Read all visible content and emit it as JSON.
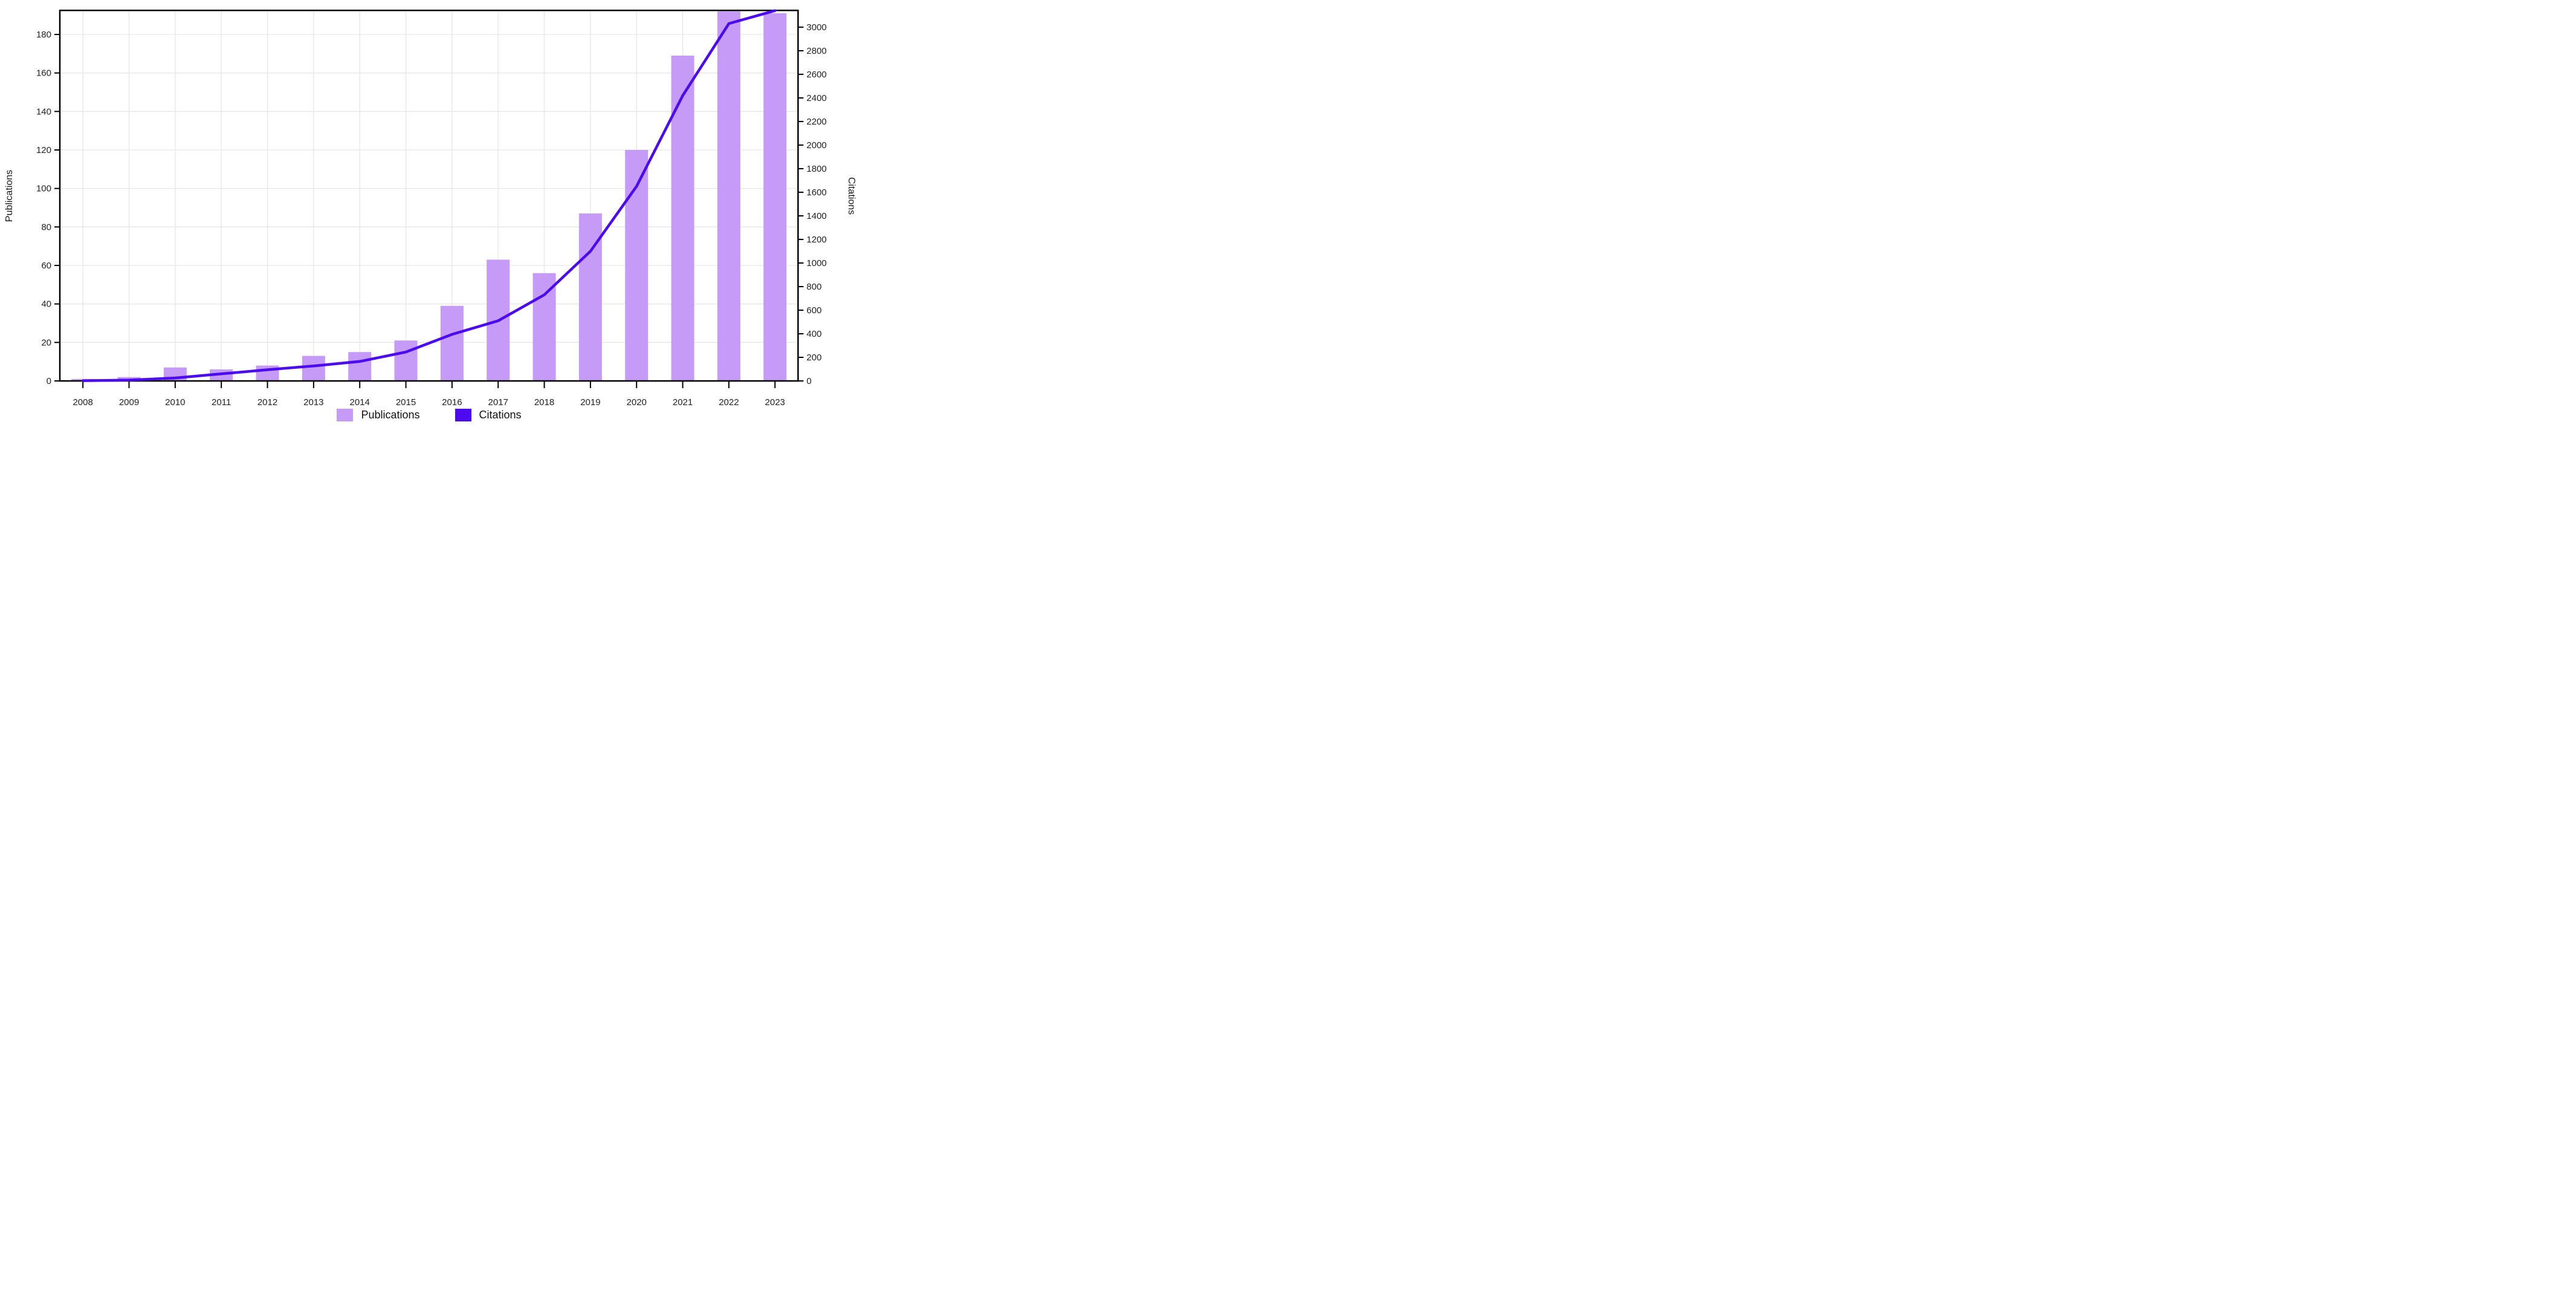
{
  "axes": {
    "left_title": "Publications",
    "right_title": "Citations"
  },
  "legend": {
    "publications_label": "Publications",
    "citations_label": "Citations"
  },
  "chart_data": {
    "type": "bar",
    "title": "",
    "categories": [
      "2008",
      "2009",
      "2010",
      "2011",
      "2012",
      "2013",
      "2014",
      "2015",
      "2016",
      "2017",
      "2018",
      "2019",
      "2020",
      "2021",
      "2022",
      "2023"
    ],
    "series": [
      {
        "name": "Publications",
        "type": "bar",
        "yaxis": "left",
        "color": "#c69af7",
        "values": [
          1,
          2,
          7,
          6,
          8,
          13,
          15,
          21,
          39,
          63,
          56,
          87,
          120,
          169,
          192,
          191
        ]
      },
      {
        "name": "Citations",
        "type": "line",
        "yaxis": "right",
        "color": "#4b0af0",
        "values": [
          2,
          7,
          25,
          60,
          95,
          127,
          165,
          245,
          395,
          510,
          730,
          1100,
          1650,
          2420,
          3030,
          3140
        ]
      }
    ],
    "left_axis": {
      "title": "Publications",
      "ticks": [
        0,
        20,
        40,
        60,
        80,
        100,
        120,
        140,
        160,
        180
      ],
      "range": [
        0,
        192.5
      ]
    },
    "right_axis": {
      "title": "Citations",
      "ticks": [
        0,
        200,
        400,
        600,
        800,
        1000,
        1200,
        1400,
        1600,
        1800,
        2000,
        2200,
        2400,
        2600,
        2800,
        3000
      ],
      "range": [
        0,
        3142
      ]
    },
    "grid": {
      "vertical": "per-year",
      "horizontal": "left-axis-ticks",
      "color": "#e6e6e6",
      "on": true
    },
    "frame_color": "#000000",
    "tick_label_color": "#222222",
    "legend_position": "bottom-center"
  }
}
